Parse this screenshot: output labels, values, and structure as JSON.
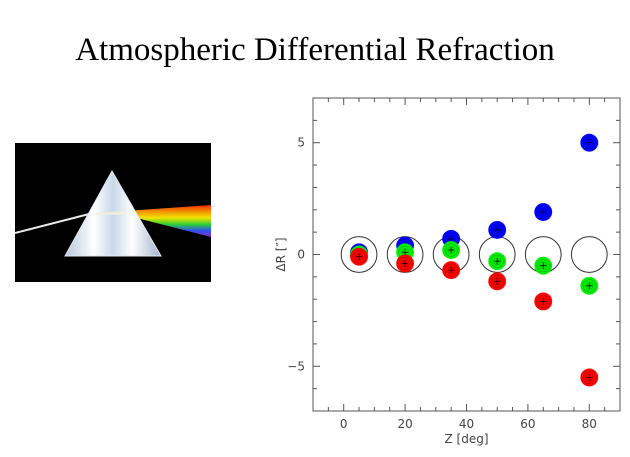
{
  "slide": {
    "title": "Atmospheric Differential Refraction",
    "image": "prism-dispersion-icon"
  },
  "colors": {
    "red": "#ff0000",
    "green": "#00ee00",
    "blue": "#0000ff",
    "axis": "#555555",
    "reference_circle": "#333333"
  },
  "chart_data": {
    "type": "scatter",
    "title": "",
    "xlabel": "Z [deg]",
    "ylabel": "ΔR [″]",
    "xlim": [
      -10,
      90
    ],
    "ylim": [
      7,
      -7
    ],
    "y_inverted": true,
    "grid": false,
    "legend": "none",
    "x_ticks": [
      0,
      20,
      40,
      60,
      80
    ],
    "y_ticks": [
      -5,
      0,
      5
    ],
    "x_tick_labels": [
      "0",
      "20",
      "40",
      "60",
      "80"
    ],
    "y_tick_labels": [
      "−5",
      "0",
      "5"
    ],
    "reference_circles": {
      "x": [
        5,
        20,
        35,
        50,
        65,
        80
      ],
      "radius_arcsec": 0.8
    },
    "series": [
      {
        "color": "red",
        "marker_radius_arcsec": 0.4,
        "points": [
          {
            "x": 5,
            "y": -0.1
          },
          {
            "x": 20,
            "y": -0.4
          },
          {
            "x": 35,
            "y": -0.7
          },
          {
            "x": 50,
            "y": -1.2
          },
          {
            "x": 65,
            "y": -2.1
          },
          {
            "x": 80,
            "y": -5.5
          }
        ]
      },
      {
        "color": "green",
        "marker_radius_arcsec": 0.4,
        "points": [
          {
            "x": 5,
            "y": 0.0
          },
          {
            "x": 20,
            "y": 0.1
          },
          {
            "x": 35,
            "y": 0.2
          },
          {
            "x": 50,
            "y": -0.3
          },
          {
            "x": 65,
            "y": -0.5
          },
          {
            "x": 80,
            "y": -1.4
          }
        ]
      },
      {
        "color": "blue",
        "marker_radius_arcsec": 0.4,
        "points": [
          {
            "x": 5,
            "y": 0.1
          },
          {
            "x": 20,
            "y": 0.4
          },
          {
            "x": 35,
            "y": 0.7
          },
          {
            "x": 50,
            "y": 1.1
          },
          {
            "x": 65,
            "y": 1.9
          },
          {
            "x": 80,
            "y": 5.0
          }
        ]
      }
    ]
  }
}
